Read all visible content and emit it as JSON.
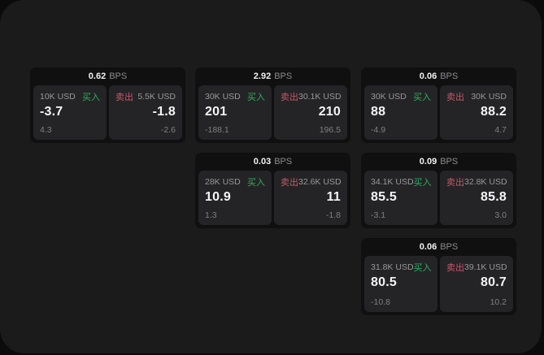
{
  "labels": {
    "buy": "买入",
    "sell": "卖出",
    "bps_unit": "BPS"
  },
  "colors": {
    "window_bg": "#1b1b1c",
    "card_bg": "#101011",
    "panel_bg": "#242426",
    "buy_green": "#2fae5e",
    "sell_red": "#c05a68"
  },
  "cards": [
    {
      "bps": "0.62",
      "buy": {
        "size": "10K USD",
        "value": "-3.7",
        "delta": "4.3"
      },
      "sell": {
        "size": "5.5K USD",
        "value": "-1.8",
        "delta": "-2.6"
      }
    },
    {
      "bps": "2.92",
      "buy": {
        "size": "30K USD",
        "value": "201",
        "delta": "-188.1"
      },
      "sell": {
        "size": "30.1K USD",
        "value": "210",
        "delta": "196.5"
      }
    },
    {
      "bps": "0.06",
      "buy": {
        "size": "30K USD",
        "value": "88",
        "delta": "-4.9"
      },
      "sell": {
        "size": "30K USD",
        "value": "88.2",
        "delta": "4.7"
      }
    },
    {
      "bps": "0.03",
      "buy": {
        "size": "28K USD",
        "value": "10.9",
        "delta": "1.3"
      },
      "sell": {
        "size": "32.6K USD",
        "value": "11",
        "delta": "-1.8"
      }
    },
    {
      "bps": "0.09",
      "buy": {
        "size": "34.1K USD",
        "value": "85.5",
        "delta": "-3.1"
      },
      "sell": {
        "size": "32.8K USD",
        "value": "85.8",
        "delta": "3.0"
      }
    },
    {
      "bps": "0.06",
      "buy": {
        "size": "31.8K USD",
        "value": "80.5",
        "delta": "-10.8"
      },
      "sell": {
        "size": "39.1K USD",
        "value": "80.7",
        "delta": "10.2"
      }
    }
  ]
}
